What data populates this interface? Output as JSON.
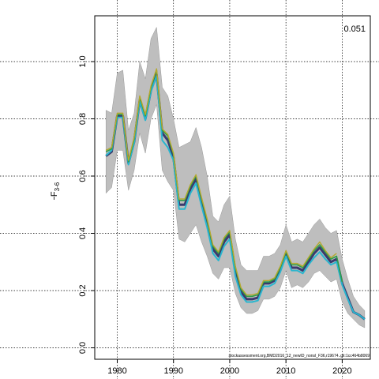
{
  "chart_data": {
    "type": "line",
    "title": "",
    "ylabel_main": "F",
    "ylabel_sub": "3-6",
    "corner_value": "0.051",
    "footer_text": "stockassessment.org,BMD2016_12_newID_nonsl_F36,r19674..git:1cc464b8069",
    "xlim": [
      1976,
      2025
    ],
    "ylim": [
      -0.04,
      1.16
    ],
    "x_ticks": [
      1980,
      1990,
      2000,
      2010,
      2020
    ],
    "y_ticks": [
      0.0,
      0.2,
      0.4,
      0.6,
      0.8,
      1.0
    ],
    "x_tick_labels": [
      "1980",
      "1990",
      "2000",
      "2010",
      "2020"
    ],
    "y_tick_labels": [
      "0.0",
      "0.2",
      "0.4",
      "0.6",
      "0.8",
      "1.0"
    ],
    "grid": true,
    "band_color": "#bebebe",
    "confidence_band": {
      "x": [
        1978,
        1979,
        1980,
        1981,
        1982,
        1983,
        1984,
        1985,
        1986,
        1987,
        1988,
        1989,
        1990,
        1991,
        1992,
        1993,
        1994,
        1995,
        1996,
        1997,
        1998,
        1999,
        2000,
        2001,
        2002,
        2003,
        2004,
        2005,
        2006,
        2007,
        2008,
        2009,
        2010,
        2011,
        2012,
        2013,
        2014,
        2015,
        2016,
        2017,
        2018,
        2019,
        2020,
        2021,
        2022,
        2023,
        2024
      ],
      "lower": [
        0.54,
        0.56,
        0.69,
        0.69,
        0.55,
        0.62,
        0.75,
        0.68,
        0.8,
        0.85,
        0.62,
        0.58,
        0.55,
        0.38,
        0.37,
        0.4,
        0.43,
        0.37,
        0.32,
        0.26,
        0.24,
        0.28,
        0.28,
        0.19,
        0.14,
        0.12,
        0.12,
        0.13,
        0.17,
        0.17,
        0.18,
        0.21,
        0.27,
        0.21,
        0.22,
        0.21,
        0.23,
        0.26,
        0.27,
        0.25,
        0.23,
        0.24,
        0.16,
        0.12,
        0.1,
        0.08,
        0.07
      ],
      "upper": [
        0.83,
        0.82,
        0.96,
        0.97,
        0.76,
        0.82,
        1.0,
        0.94,
        1.08,
        1.12,
        0.91,
        0.88,
        0.8,
        0.7,
        0.71,
        0.72,
        0.77,
        0.7,
        0.6,
        0.46,
        0.44,
        0.5,
        0.53,
        0.38,
        0.29,
        0.27,
        0.27,
        0.27,
        0.32,
        0.32,
        0.33,
        0.36,
        0.43,
        0.37,
        0.38,
        0.37,
        0.4,
        0.43,
        0.45,
        0.42,
        0.4,
        0.41,
        0.31,
        0.24,
        0.18,
        0.15,
        0.13
      ]
    },
    "series": [
      {
        "color": "#3a3a6e",
        "x": [
          1978,
          1979,
          1980,
          1981,
          1982,
          1983,
          1984,
          1985,
          1986,
          1987,
          1988,
          1989,
          1990,
          1991,
          1992,
          1993,
          1994,
          1995,
          1996,
          1997,
          1998,
          1999,
          2000,
          2001,
          2002,
          2003,
          2004,
          2005,
          2006,
          2007,
          2008,
          2009,
          2010,
          2011,
          2012,
          2013,
          2014,
          2015,
          2016,
          2017,
          2018,
          2019,
          2020,
          2021,
          2022,
          2023,
          2024
        ],
        "values": [
          0.67,
          0.685,
          0.81,
          0.81,
          0.645,
          0.72,
          0.865,
          0.8,
          0.9,
          0.955,
          0.75,
          0.725,
          0.665,
          0.5,
          0.5,
          0.555,
          0.59,
          0.51,
          0.435,
          0.345,
          0.32,
          0.37,
          0.395,
          0.265,
          0.195,
          0.17,
          0.17,
          0.175,
          0.225,
          0.225,
          0.235,
          0.275,
          0.33,
          0.28,
          0.28,
          0.27,
          0.3,
          0.33,
          0.35,
          0.325,
          0.3,
          0.31,
          0.225,
          0.175,
          0.125,
          0.115,
          0.1
        ]
      },
      {
        "color": "#29b6cf",
        "x": [
          1978,
          1979,
          1980,
          1981,
          1982,
          1983,
          1984,
          1985,
          1986,
          1987,
          1988,
          1989,
          1990,
          1991,
          1992,
          1993,
          1994,
          1995,
          1996,
          1997,
          1998,
          1999,
          2000,
          2001,
          2002,
          2003,
          2004,
          2005,
          2006,
          2007,
          2008,
          2009,
          2010,
          2011,
          2012,
          2013,
          2014,
          2015,
          2016,
          2017,
          2018,
          2019,
          2020,
          2021,
          2022,
          2023,
          2024
        ],
        "values": [
          0.672,
          0.69,
          0.805,
          0.805,
          0.64,
          0.715,
          0.86,
          0.795,
          0.895,
          0.95,
          0.725,
          0.7,
          0.655,
          0.485,
          0.485,
          0.54,
          0.575,
          0.495,
          0.42,
          0.33,
          0.305,
          0.355,
          0.38,
          0.25,
          0.185,
          0.16,
          0.16,
          0.165,
          0.215,
          0.215,
          0.225,
          0.265,
          0.32,
          0.27,
          0.27,
          0.26,
          0.29,
          0.315,
          0.335,
          0.31,
          0.29,
          0.3,
          0.22,
          0.17,
          0.125,
          0.115,
          0.1
        ]
      },
      {
        "color": "#2e9c4a",
        "x": [
          1978,
          1979,
          1980,
          1981,
          1982,
          1983,
          1984,
          1985,
          1986,
          1987,
          1988,
          1989,
          1990,
          1991,
          1992,
          1993,
          1994,
          1995,
          1996,
          1997,
          1998,
          1999,
          2000,
          2001,
          2002,
          2003,
          2004,
          2005,
          2006,
          2007,
          2008,
          2009,
          2010,
          2011,
          2012,
          2013,
          2014,
          2015,
          2016,
          2017,
          2018,
          2019,
          2020
        ],
        "values": [
          0.685,
          0.695,
          0.815,
          0.815,
          0.65,
          0.73,
          0.875,
          0.81,
          0.91,
          0.97,
          0.76,
          0.74,
          0.675,
          0.515,
          0.515,
          0.565,
          0.6,
          0.52,
          0.445,
          0.355,
          0.33,
          0.38,
          0.405,
          0.28,
          0.205,
          0.18,
          0.18,
          0.185,
          0.23,
          0.23,
          0.24,
          0.28,
          0.335,
          0.29,
          0.29,
          0.28,
          0.31,
          0.34,
          0.36,
          0.335,
          0.31,
          0.32,
          0.23
        ]
      },
      {
        "color": "#b5a82e",
        "x": [
          1978,
          1979,
          1980,
          1981,
          1982,
          1983,
          1984,
          1985,
          1986,
          1987,
          1988,
          1989,
          1990,
          1991,
          1992,
          1993,
          1994,
          1995,
          1996,
          1997,
          1998,
          1999,
          2000,
          2001,
          2002,
          2003,
          2004,
          2005,
          2006,
          2007,
          2008,
          2009,
          2010,
          2011,
          2012,
          2013,
          2014,
          2015,
          2016,
          2017,
          2018,
          2019
        ],
        "values": [
          0.69,
          0.7,
          0.82,
          0.82,
          0.655,
          0.735,
          0.88,
          0.815,
          0.915,
          0.975,
          0.765,
          0.745,
          0.68,
          0.52,
          0.52,
          0.57,
          0.605,
          0.525,
          0.45,
          0.36,
          0.335,
          0.385,
          0.41,
          0.285,
          0.21,
          0.185,
          0.185,
          0.19,
          0.235,
          0.235,
          0.245,
          0.285,
          0.34,
          0.295,
          0.295,
          0.285,
          0.315,
          0.345,
          0.37,
          0.34,
          0.315,
          0.33
        ]
      }
    ]
  }
}
